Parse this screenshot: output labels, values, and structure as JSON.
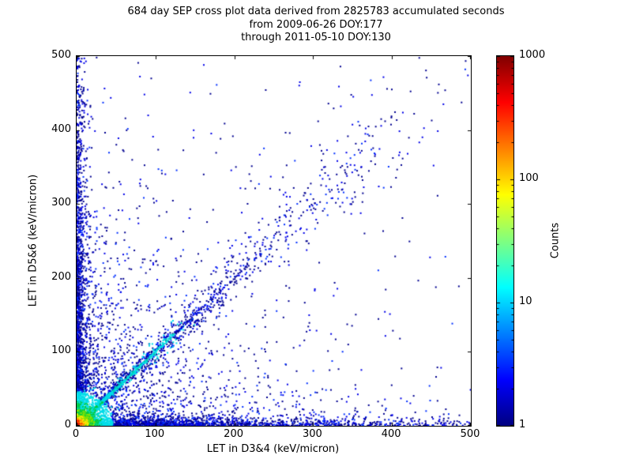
{
  "chart_data": {
    "type": "scatter",
    "title": "684 day SEP cross plot data derived from 2825783 accumulated seconds",
    "subtitle1": "from 2009-06-26 DOY:177",
    "subtitle2": "through 2011-05-10 DOY:130",
    "xlabel": "LET in D3&4 (keV/micron)",
    "ylabel": "LET in D5&6 (keV/micron)",
    "xlim": [
      0,
      500
    ],
    "ylim": [
      0,
      500
    ],
    "xticks": [
      0,
      100,
      200,
      300,
      400,
      500
    ],
    "yticks": [
      0,
      100,
      200,
      300,
      400,
      500
    ],
    "grid": false,
    "legend": "none",
    "colorbar": {
      "label": "Counts",
      "scale": "log",
      "min": 1,
      "max": 1000,
      "ticks": [
        1,
        10,
        100,
        1000
      ],
      "colormap": "jet",
      "gradient": [
        "#000080",
        "#0000ff",
        "#00ffff",
        "#ffff00",
        "#ff0000",
        "#800000"
      ],
      "gradient_stops": [
        0,
        12.5,
        37.5,
        62.5,
        87.5,
        100
      ]
    },
    "render": {
      "seed": 20110510,
      "point_size": 2,
      "palette": {
        "navy": "#000090",
        "blue": "#0000e8",
        "mid_blue": "#0030ff",
        "cyan": "#00dce8",
        "teal": "#00c8a8",
        "green": "#00cc44",
        "chartreuse": "#86e400",
        "yellow": "#ffe400",
        "orange": "#ff8c00",
        "red": "#f01800",
        "dark_red": "#980000"
      },
      "layers": [
        {
          "name": "far-field",
          "kind": "expexp",
          "n": 500,
          "xs": 260,
          "ys": 260
        },
        {
          "name": "diffuse",
          "kind": "expexp",
          "n": 1400,
          "xs": 85,
          "ys": 85
        },
        {
          "name": "left-column",
          "kind": "expexp",
          "n": 2000,
          "xs": 5,
          "ys": 200
        },
        {
          "name": "bottom-row",
          "kind": "expexp",
          "n": 1700,
          "xs": 200,
          "ys": 5
        },
        {
          "name": "diag-fan",
          "kind": "fan",
          "n": 260,
          "t0": 80,
          "t1": 420,
          "jf": 0.16
        },
        {
          "name": "diag-medium",
          "kind": "diagm",
          "n": 900,
          "ts": 110,
          "jg": 0.09
        },
        {
          "name": "diag-tight",
          "kind": "diagt",
          "n": 800,
          "ts": 50,
          "j": 1.5
        },
        {
          "name": "hotspot",
          "kind": "hot",
          "n": 2600,
          "rs": 9
        }
      ]
    }
  }
}
